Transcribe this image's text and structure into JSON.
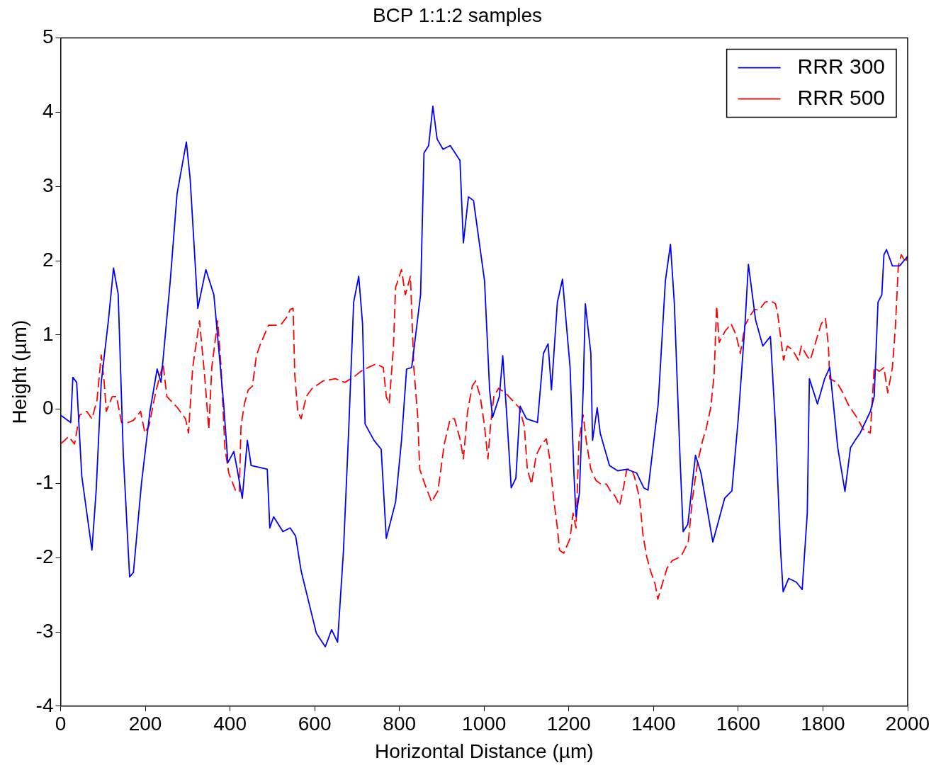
{
  "chart_data": {
    "type": "line",
    "title": "BCP 1:1:2 samples",
    "xlabel": "Horizontal Distance (µm)",
    "ylabel": "Height (µm)",
    "xlim": [
      0,
      2000
    ],
    "xticks": [
      0,
      200,
      400,
      600,
      800,
      1000,
      1200,
      1400,
      1600,
      1800,
      2000
    ],
    "ylim": [
      -4,
      5
    ],
    "yticks": [
      -4,
      -3,
      -2,
      -1,
      0,
      1,
      2,
      3,
      4,
      5
    ],
    "grid": false,
    "legend": "top right",
    "marker": "none",
    "series": [
      {
        "name": "RRR 300",
        "color": "#0000ff",
        "line_style": "solid",
        "x": [
          0,
          24,
          29,
          38,
          50,
          74,
          84,
          96,
          113,
          125,
          136,
          148,
          163,
          172,
          191,
          211,
          228,
          237,
          259,
          275,
          297,
          306,
          324,
          343,
          362,
          385,
          395,
          409,
          417,
          429,
          441,
          450,
          488,
          494,
          503,
          525,
          542,
          555,
          568,
          604,
          625,
          640,
          654,
          668,
          680,
          692,
          704,
          713,
          719,
          740,
          757,
          769,
          791,
          805,
          817,
          829,
          850,
          858,
          869,
          879,
          889,
          903,
          920,
          943,
          951,
          963,
          975,
          1001,
          1013,
          1020,
          1036,
          1044,
          1054,
          1064,
          1075,
          1085,
          1100,
          1126,
          1140,
          1151,
          1159,
          1173,
          1185,
          1203,
          1212,
          1217,
          1225,
          1234,
          1239,
          1252,
          1256,
          1267,
          1274,
          1296,
          1315,
          1337,
          1360,
          1377,
          1387,
          1411,
          1428,
          1440,
          1449,
          1463,
          1470,
          1481,
          1499,
          1512,
          1540,
          1568,
          1585,
          1600,
          1616,
          1624,
          1641,
          1658,
          1676,
          1688,
          1700,
          1706,
          1719,
          1737,
          1751,
          1763,
          1768,
          1787,
          1804,
          1816,
          1835,
          1852,
          1865,
          1876,
          1888,
          1912,
          1921,
          1930,
          1939,
          1944,
          1950,
          1964,
          1981,
          2000
        ],
        "values": [
          -0.08,
          -0.18,
          0.43,
          0.36,
          -0.9,
          -1.9,
          -1.1,
          0.36,
          1.2,
          1.9,
          1.55,
          -0.6,
          -2.26,
          -2.2,
          -1.0,
          -0.03,
          0.54,
          0.36,
          1.73,
          2.9,
          3.6,
          3.1,
          1.36,
          1.88,
          1.54,
          0.07,
          -0.72,
          -0.57,
          -0.81,
          -1.2,
          -0.42,
          -0.76,
          -0.81,
          -1.6,
          -1.45,
          -1.65,
          -1.6,
          -1.71,
          -2.18,
          -3.02,
          -3.2,
          -2.97,
          -3.14,
          -1.9,
          -0.32,
          1.44,
          1.79,
          1.15,
          -0.2,
          -0.42,
          -0.54,
          -1.74,
          -1.25,
          -0.42,
          0.54,
          0.56,
          1.54,
          3.45,
          3.55,
          4.08,
          3.64,
          3.5,
          3.55,
          3.35,
          2.24,
          2.86,
          2.81,
          1.73,
          0.26,
          -0.11,
          0.17,
          0.72,
          -0.13,
          -1.06,
          -0.93,
          0.04,
          -0.13,
          -0.18,
          0.75,
          0.88,
          0.26,
          1.44,
          1.75,
          0.56,
          -0.86,
          -1.45,
          -1.13,
          0.28,
          1.42,
          0.75,
          -0.42,
          0.02,
          -0.32,
          -0.76,
          -0.83,
          -0.81,
          -0.86,
          -1.06,
          -1.09,
          0.07,
          1.73,
          2.22,
          1.44,
          -0.72,
          -1.65,
          -1.55,
          -0.62,
          -0.86,
          -1.79,
          -1.2,
          -1.1,
          -0.13,
          1.15,
          1.95,
          1.2,
          0.85,
          0.98,
          -0.23,
          -1.9,
          -2.46,
          -2.28,
          -2.33,
          -2.43,
          -1.4,
          0.41,
          0.07,
          0.41,
          0.56,
          -0.52,
          -1.11,
          -0.52,
          -0.42,
          -0.32,
          -0.03,
          0.17,
          1.44,
          1.54,
          2.08,
          2.15,
          1.93,
          1.93,
          2.06
        ]
      },
      {
        "name": "RRR 500",
        "color": "#ff0000",
        "line_style": "dashed",
        "x": [
          0,
          19,
          33,
          45,
          62,
          74,
          86,
          96,
          103,
          108,
          122,
          132,
          144,
          160,
          172,
          189,
          199,
          209,
          225,
          242,
          251,
          276,
          295,
          302,
          312,
          328,
          340,
          350,
          357,
          371,
          379,
          388,
          397,
          414,
          422,
          426,
          434,
          443,
          453,
          462,
          470,
          491,
          508,
          522,
          534,
          542,
          549,
          553,
          560,
          568,
          580,
          594,
          620,
          649,
          671,
          694,
          709,
          726,
          745,
          762,
          769,
          776,
          786,
          791,
          805,
          814,
          826,
          834,
          843,
          848,
          860,
          876,
          891,
          906,
          920,
          930,
          944,
          951,
          961,
          972,
          980,
          991,
          1001,
          1009,
          1015,
          1023,
          1034,
          1050,
          1083,
          1095,
          1102,
          1112,
          1123,
          1136,
          1147,
          1155,
          1164,
          1173,
          1178,
          1188,
          1203,
          1210,
          1217,
          1224,
          1234,
          1241,
          1252,
          1264,
          1276,
          1289,
          1301,
          1308,
          1320,
          1329,
          1337,
          1348,
          1355,
          1367,
          1375,
          1384,
          1393,
          1404,
          1410,
          1422,
          1432,
          1444,
          1456,
          1466,
          1482,
          1492,
          1504,
          1516,
          1524,
          1535,
          1543,
          1549,
          1555,
          1569,
          1583,
          1595,
          1605,
          1616,
          1628,
          1638,
          1650,
          1663,
          1676,
          1688,
          1693,
          1707,
          1716,
          1728,
          1742,
          1749,
          1763,
          1770,
          1780,
          1796,
          1806,
          1813,
          1816,
          1833,
          1847,
          1859,
          1882,
          1895,
          1912,
          1921,
          1933,
          1944,
          1953,
          1964,
          1971,
          1978,
          1985,
          1995,
          2000
        ],
        "values": [
          -0.47,
          -0.37,
          -0.47,
          -0.08,
          -0.03,
          -0.13,
          0.12,
          0.73,
          0.36,
          -0.03,
          0.17,
          0.17,
          -0.18,
          -0.18,
          -0.15,
          -0.03,
          -0.32,
          -0.22,
          0.24,
          0.61,
          0.17,
          0.02,
          -0.13,
          -0.32,
          0.56,
          1.19,
          0.46,
          -0.27,
          0.56,
          1.19,
          0.56,
          -0.52,
          -0.86,
          -1.11,
          -1.11,
          -0.23,
          0.07,
          0.26,
          0.31,
          0.71,
          0.85,
          1.13,
          1.13,
          1.15,
          1.24,
          1.34,
          1.36,
          0.46,
          -0.03,
          -0.13,
          0.17,
          0.28,
          0.38,
          0.41,
          0.36,
          0.44,
          0.51,
          0.56,
          0.61,
          0.56,
          0.17,
          0.07,
          0.85,
          1.64,
          1.88,
          1.54,
          1.79,
          0.56,
          -0.08,
          -0.81,
          -1.01,
          -1.25,
          -1.1,
          -0.47,
          -0.13,
          -0.13,
          -0.42,
          -0.67,
          -0.03,
          0.31,
          0.38,
          0.17,
          -0.23,
          -0.67,
          -0.23,
          0.17,
          0.28,
          0.22,
          0.02,
          -0.23,
          -0.81,
          -1.01,
          -0.62,
          -0.47,
          -0.4,
          -0.67,
          -1.2,
          -1.6,
          -1.9,
          -1.94,
          -1.74,
          -1.4,
          -1.6,
          -0.42,
          -0.08,
          -0.42,
          -0.81,
          -0.96,
          -1.01,
          -1.01,
          -1.13,
          -1.16,
          -1.3,
          -1.06,
          -0.81,
          -0.81,
          -0.91,
          -1.2,
          -1.69,
          -1.99,
          -2.18,
          -2.36,
          -2.56,
          -2.33,
          -2.14,
          -2.04,
          -2.01,
          -1.97,
          -1.79,
          -1.2,
          -0.72,
          -0.42,
          -0.27,
          0.02,
          0.46,
          1.39,
          0.9,
          1.05,
          1.15,
          1.0,
          0.75,
          1.13,
          1.26,
          1.34,
          1.34,
          1.44,
          1.46,
          1.42,
          1.29,
          0.66,
          0.85,
          0.8,
          0.66,
          0.85,
          0.71,
          0.66,
          0.85,
          1.15,
          1.22,
          0.85,
          0.41,
          0.36,
          0.22,
          0.07,
          -0.13,
          -0.27,
          -0.32,
          0.56,
          0.51,
          0.56,
          0.22,
          0.56,
          1.1,
          1.93,
          2.08,
          1.98,
          2.06
        ]
      }
    ]
  }
}
